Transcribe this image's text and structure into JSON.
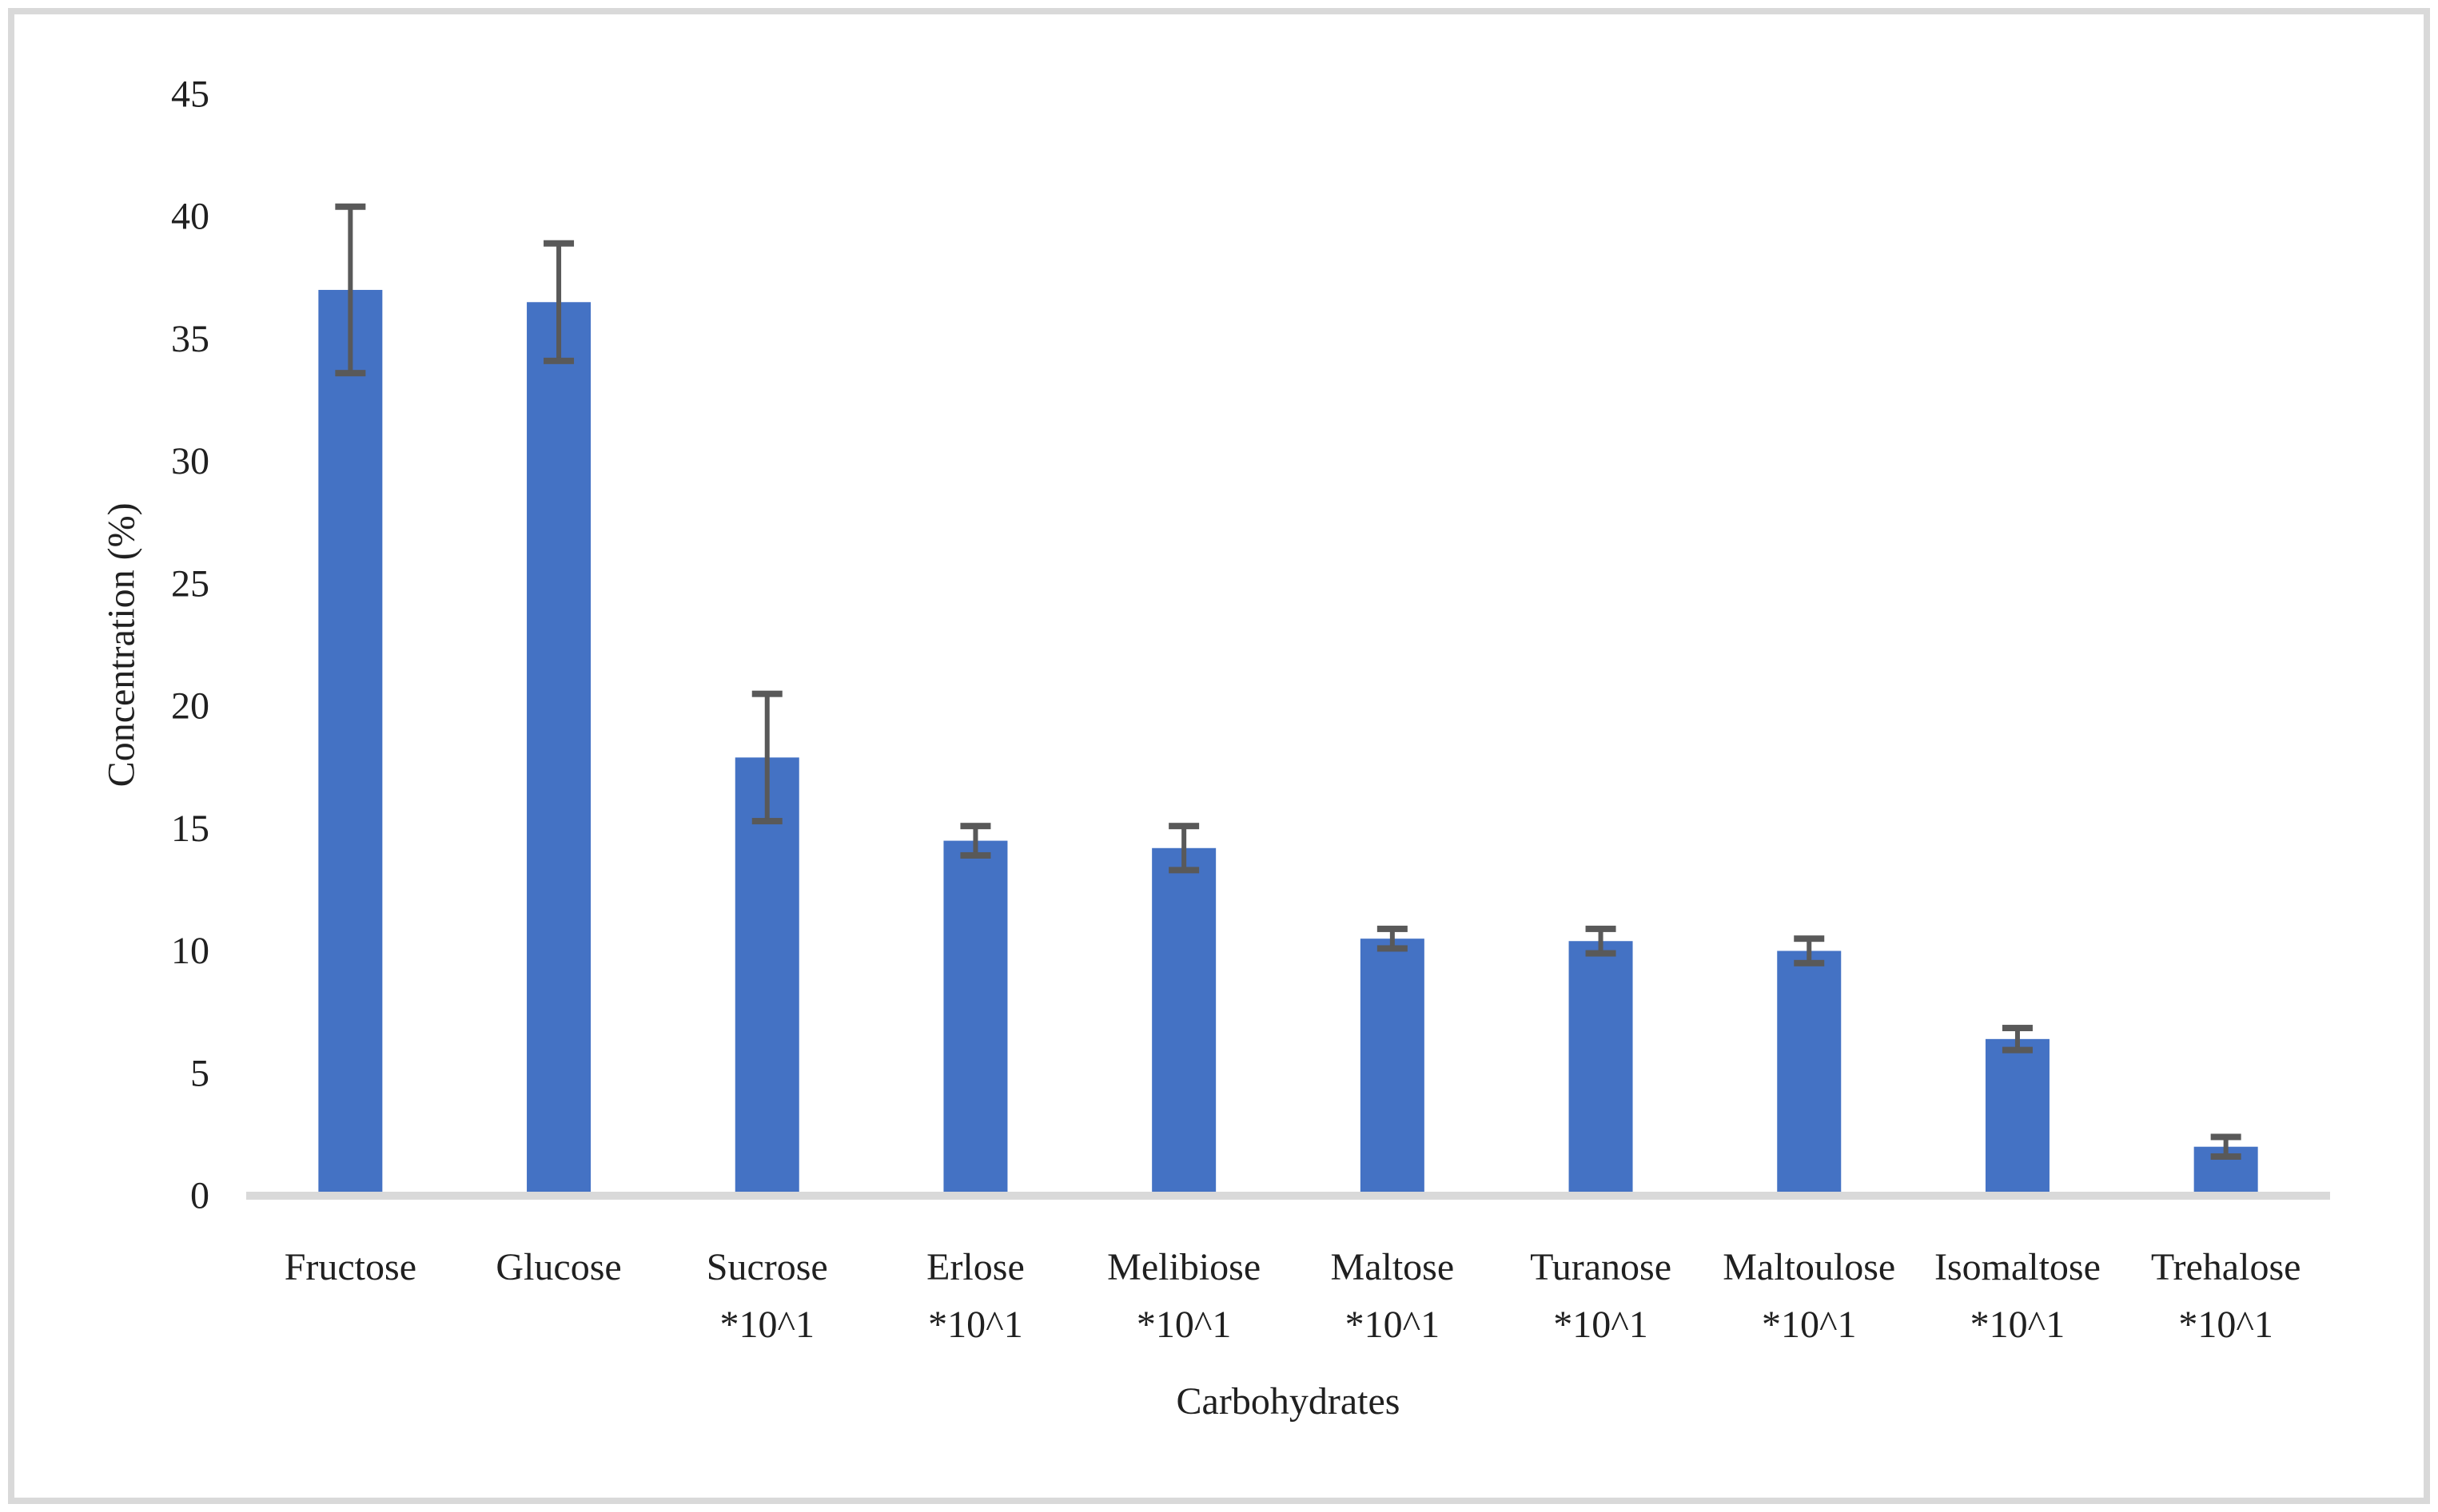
{
  "figure": {
    "background_color": "#ffffff",
    "frame_color": "#d9d9d9"
  },
  "chart_data": {
    "type": "bar",
    "title": "",
    "xlabel": "Carbohydrates",
    "ylabel": "Concentration (%)",
    "ylim": [
      0,
      45
    ],
    "ytick_step": 5,
    "ytick_labels": [
      "0",
      "5",
      "10",
      "15",
      "20",
      "25",
      "30",
      "35",
      "40",
      "45"
    ],
    "grid": false,
    "legend": "none",
    "categories": [
      "Fructose",
      "Glucose",
      "Sucrose",
      "Erlose",
      "Melibiose",
      "Maltose",
      "Turanose",
      "Maltoulose",
      "Isomaltose",
      "Trehalose"
    ],
    "category_sublabels": [
      "",
      "",
      "*10^1",
      "*10^1",
      "*10^1",
      "*10^1",
      "*10^1",
      "*10^1",
      "*10^1",
      "*10^1"
    ],
    "values": [
      37.0,
      36.5,
      17.9,
      14.5,
      14.2,
      10.5,
      10.4,
      10.0,
      6.4,
      2.0
    ],
    "error_bars": [
      3.4,
      2.4,
      2.6,
      0.6,
      0.9,
      0.4,
      0.5,
      0.5,
      0.45,
      0.4
    ],
    "bar_color": "#4472c4",
    "error_bar_color": "#595959",
    "axis_line_color": "#d9d9d9",
    "text_color": "#202020"
  }
}
